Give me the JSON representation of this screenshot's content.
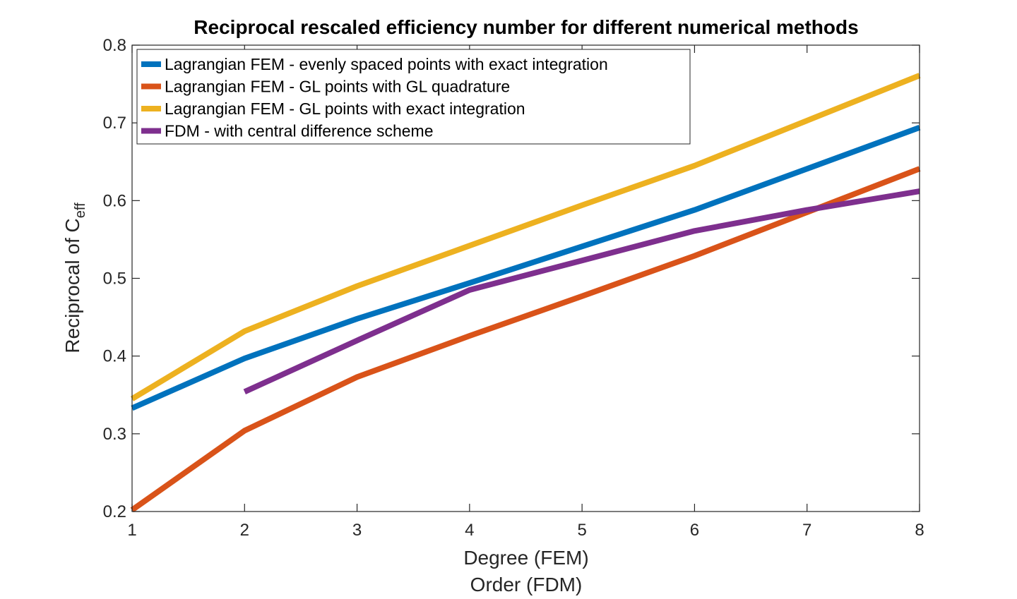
{
  "chart_data": {
    "type": "line",
    "title": "Reciprocal rescaled efficiency number for different numerical methods",
    "xlabel_line1": "Degree (FEM)",
    "xlabel_line2": "Order (FDM)",
    "ylabel_main": "Reciprocal of C",
    "ylabel_subscript": "eff",
    "xlim": [
      1,
      8
    ],
    "ylim": [
      0.2,
      0.8
    ],
    "xticks": [
      1,
      2,
      3,
      4,
      5,
      6,
      7,
      8
    ],
    "yticks": [
      0.2,
      0.3,
      0.4,
      0.5,
      0.6,
      0.7,
      0.8
    ],
    "grid": false,
    "legend_location": "top-left",
    "series": [
      {
        "name": "Lagrangian FEM - evenly spaced points with exact integration",
        "color": "#0072BD",
        "x": [
          1,
          2,
          3,
          4,
          5,
          6,
          7,
          8
        ],
        "y": [
          0.333,
          0.397,
          0.448,
          0.494,
          0.541,
          0.588,
          0.641,
          0.694
        ]
      },
      {
        "name": "Lagrangian FEM - GL points with GL quadrature",
        "color": "#D95319",
        "x": [
          1,
          2,
          3,
          4,
          5,
          6,
          7,
          8
        ],
        "y": [
          0.202,
          0.304,
          0.373,
          0.426,
          0.477,
          0.529,
          0.585,
          0.641
        ]
      },
      {
        "name": "Lagrangian FEM - GL points with exact integration",
        "color": "#EDB120",
        "x": [
          1,
          2,
          3,
          4,
          5,
          6,
          7,
          8
        ],
        "y": [
          0.345,
          0.432,
          0.49,
          0.542,
          0.594,
          0.645,
          0.703,
          0.761
        ]
      },
      {
        "name": "FDM - with central difference scheme",
        "color": "#7E2F8E",
        "x": [
          2,
          3,
          4,
          5,
          6,
          7,
          8
        ],
        "y": [
          0.354,
          0.42,
          0.485,
          0.523,
          0.561,
          0.588,
          0.612
        ]
      }
    ]
  }
}
